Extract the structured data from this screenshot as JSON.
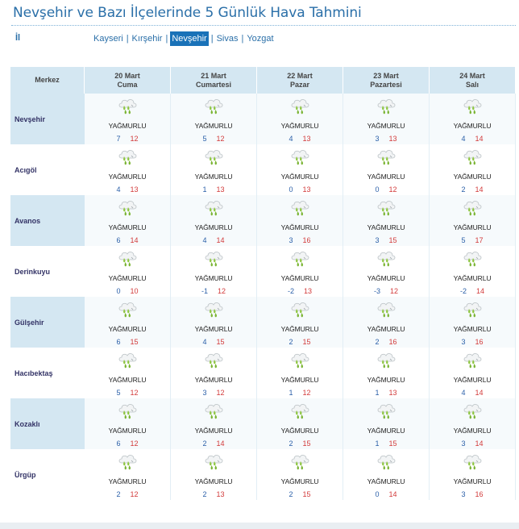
{
  "header": {
    "title": "Nevşehir ve Bazı İlçelerinde 5 Günlük Hava Tahmini",
    "il_label": "İl"
  },
  "city_links": [
    {
      "label": "Kayseri",
      "active": false
    },
    {
      "label": "Kırşehir",
      "active": false
    },
    {
      "label": "Nevşehir",
      "active": true
    },
    {
      "label": "Sivas",
      "active": false
    },
    {
      "label": "Yozgat",
      "active": false
    }
  ],
  "table": {
    "merkez_header": "Merkez",
    "days": [
      {
        "date": "20 Mart",
        "weekday": "Cuma"
      },
      {
        "date": "21 Mart",
        "weekday": "Cumartesi"
      },
      {
        "date": "22 Mart",
        "weekday": "Pazar"
      },
      {
        "date": "23 Mart",
        "weekday": "Pazartesi"
      },
      {
        "date": "24 Mart",
        "weekday": "Salı"
      }
    ],
    "condition_icon": "rain-cloud-icon",
    "rows": [
      {
        "name": "Nevşehir",
        "forecasts": [
          {
            "cond": "YAĞMURLU",
            "min": "7",
            "max": "12"
          },
          {
            "cond": "YAĞMURLU",
            "min": "5",
            "max": "12"
          },
          {
            "cond": "YAĞMURLU",
            "min": "4",
            "max": "13"
          },
          {
            "cond": "YAĞMURLU",
            "min": "3",
            "max": "13"
          },
          {
            "cond": "YAĞMURLU",
            "min": "4",
            "max": "14"
          }
        ]
      },
      {
        "name": "Acıgöl",
        "forecasts": [
          {
            "cond": "YAĞMURLU",
            "min": "4",
            "max": "13"
          },
          {
            "cond": "YAĞMURLU",
            "min": "1",
            "max": "13"
          },
          {
            "cond": "YAĞMURLU",
            "min": "0",
            "max": "13"
          },
          {
            "cond": "YAĞMURLU",
            "min": "0",
            "max": "12"
          },
          {
            "cond": "YAĞMURLU",
            "min": "2",
            "max": "14"
          }
        ]
      },
      {
        "name": "Avanos",
        "forecasts": [
          {
            "cond": "YAĞMURLU",
            "min": "6",
            "max": "14"
          },
          {
            "cond": "YAĞMURLU",
            "min": "4",
            "max": "14"
          },
          {
            "cond": "YAĞMURLU",
            "min": "3",
            "max": "16"
          },
          {
            "cond": "YAĞMURLU",
            "min": "3",
            "max": "15"
          },
          {
            "cond": "YAĞMURLU",
            "min": "5",
            "max": "17"
          }
        ]
      },
      {
        "name": "Derinkuyu",
        "forecasts": [
          {
            "cond": "YAĞMURLU",
            "min": "0",
            "max": "10"
          },
          {
            "cond": "YAĞMURLU",
            "min": "-1",
            "max": "12"
          },
          {
            "cond": "YAĞMURLU",
            "min": "-2",
            "max": "13"
          },
          {
            "cond": "YAĞMURLU",
            "min": "-3",
            "max": "12"
          },
          {
            "cond": "YAĞMURLU",
            "min": "-2",
            "max": "14"
          }
        ]
      },
      {
        "name": "Gülşehir",
        "forecasts": [
          {
            "cond": "YAĞMURLU",
            "min": "6",
            "max": "15"
          },
          {
            "cond": "YAĞMURLU",
            "min": "4",
            "max": "15"
          },
          {
            "cond": "YAĞMURLU",
            "min": "2",
            "max": "15"
          },
          {
            "cond": "YAĞMURLU",
            "min": "2",
            "max": "16"
          },
          {
            "cond": "YAĞMURLU",
            "min": "3",
            "max": "16"
          }
        ]
      },
      {
        "name": "Hacıbektaş",
        "forecasts": [
          {
            "cond": "YAĞMURLU",
            "min": "5",
            "max": "12"
          },
          {
            "cond": "YAĞMURLU",
            "min": "3",
            "max": "12"
          },
          {
            "cond": "YAĞMURLU",
            "min": "1",
            "max": "12"
          },
          {
            "cond": "YAĞMURLU",
            "min": "1",
            "max": "13"
          },
          {
            "cond": "YAĞMURLU",
            "min": "4",
            "max": "14"
          }
        ]
      },
      {
        "name": "Kozaklı",
        "forecasts": [
          {
            "cond": "YAĞMURLU",
            "min": "6",
            "max": "12"
          },
          {
            "cond": "YAĞMURLU",
            "min": "2",
            "max": "14"
          },
          {
            "cond": "YAĞMURLU",
            "min": "2",
            "max": "15"
          },
          {
            "cond": "YAĞMURLU",
            "min": "1",
            "max": "15"
          },
          {
            "cond": "YAĞMURLU",
            "min": "3",
            "max": "14"
          }
        ]
      },
      {
        "name": "Ürgüp",
        "forecasts": [
          {
            "cond": "YAĞMURLU",
            "min": "2",
            "max": "12"
          },
          {
            "cond": "YAĞMURLU",
            "min": "2",
            "max": "13"
          },
          {
            "cond": "YAĞMURLU",
            "min": "2",
            "max": "15"
          },
          {
            "cond": "YAĞMURLU",
            "min": "0",
            "max": "14"
          },
          {
            "cond": "YAĞMURLU",
            "min": "3",
            "max": "16"
          }
        ]
      }
    ]
  },
  "colors": {
    "title": "#2a6fa8",
    "header_bg": "#d4e7f2",
    "active_link_bg": "#1a72b8",
    "min_temp": "#2a5fa8",
    "max_temp": "#d23a3a"
  }
}
